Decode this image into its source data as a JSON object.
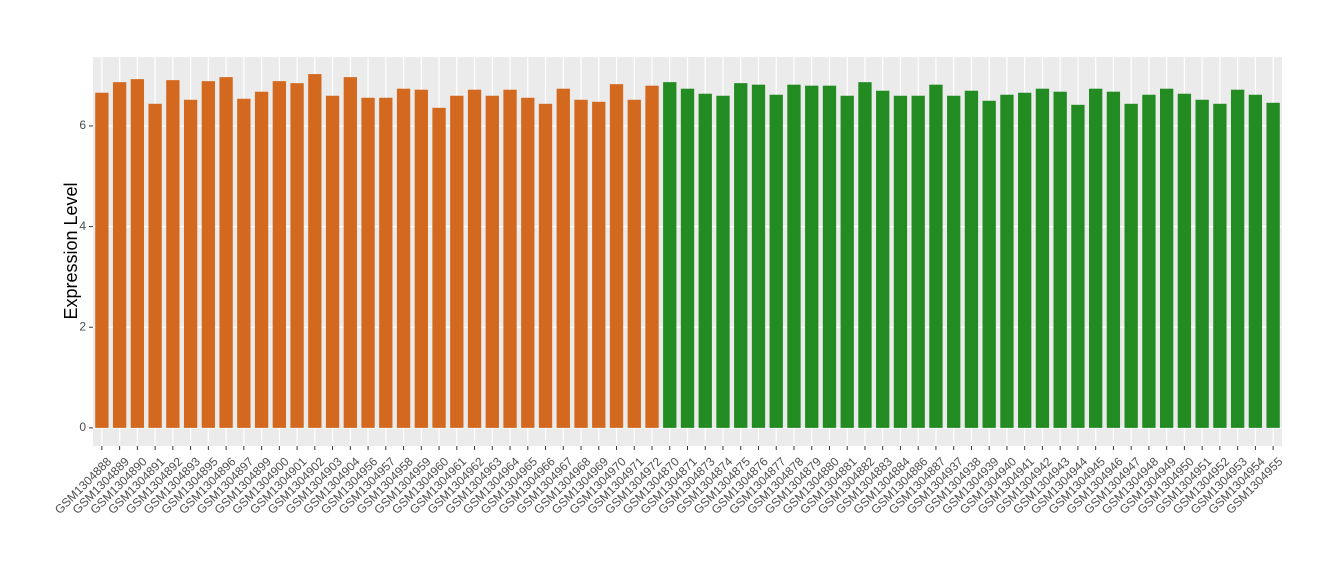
{
  "chart_data": {
    "type": "bar",
    "y_label": "Expression Level",
    "categories": [
      "GSM1304888",
      "GSM1304889",
      "GSM1304890",
      "GSM1304891",
      "GSM1304892",
      "GSM1304893",
      "GSM1304895",
      "GSM1304896",
      "GSM1304897",
      "GSM1304899",
      "GSM1304900",
      "GSM1304901",
      "GSM1304902",
      "GSM1304903",
      "GSM1304904",
      "GSM1304956",
      "GSM1304957",
      "GSM1304958",
      "GSM1304959",
      "GSM1304960",
      "GSM1304961",
      "GSM1304962",
      "GSM1304963",
      "GSM1304964",
      "GSM1304965",
      "GSM1304966",
      "GSM1304967",
      "GSM1304968",
      "GSM1304969",
      "GSM1304970",
      "GSM1304971",
      "GSM1304972",
      "GSM1304870",
      "GSM1304871",
      "GSM1304873",
      "GSM1304874",
      "GSM1304875",
      "GSM1304876",
      "GSM1304877",
      "GSM1304878",
      "GSM1304879",
      "GSM1304880",
      "GSM1304881",
      "GSM1304882",
      "GSM1304883",
      "GSM1304884",
      "GSM1304886",
      "GSM1304887",
      "GSM1304937",
      "GSM1304938",
      "GSM1304939",
      "GSM1304940",
      "GSM1304941",
      "GSM1304942",
      "GSM1304943",
      "GSM1304944",
      "GSM1304945",
      "GSM1304946",
      "GSM1304947",
      "GSM1304948",
      "GSM1304949",
      "GSM1304950",
      "GSM1304951",
      "GSM1304952",
      "GSM1304953",
      "GSM1304954",
      "GSM1304955"
    ],
    "series": [
      {
        "color": "#D2691E",
        "values": [
          6.66,
          6.87,
          6.93,
          6.44,
          6.91,
          6.52,
          6.89,
          6.97,
          6.54,
          6.68,
          6.89,
          6.85,
          7.03,
          6.6,
          6.97,
          6.56,
          6.56,
          6.74,
          6.72,
          6.36,
          6.6,
          6.72,
          6.6,
          6.72,
          6.56,
          6.44,
          6.74,
          6.52,
          6.48,
          6.83,
          6.52,
          6.8,
          null,
          null,
          null,
          null,
          null,
          null,
          null,
          null,
          null,
          null,
          null,
          null,
          null,
          null,
          null,
          null,
          null,
          null,
          null,
          null,
          null,
          null,
          null,
          null,
          null,
          null,
          null,
          null,
          null,
          null,
          null,
          null,
          null,
          null,
          null
        ]
      },
      {
        "color": "#228B22",
        "values": [
          null,
          null,
          null,
          null,
          null,
          null,
          null,
          null,
          null,
          null,
          null,
          null,
          null,
          null,
          null,
          null,
          null,
          null,
          null,
          null,
          null,
          null,
          null,
          null,
          null,
          null,
          null,
          null,
          null,
          null,
          null,
          null,
          6.87,
          6.74,
          6.64,
          6.6,
          6.85,
          6.82,
          6.62,
          6.82,
          6.8,
          6.8,
          6.6,
          6.87,
          6.7,
          6.6,
          6.6,
          6.82,
          6.6,
          6.7,
          6.5,
          6.62,
          6.66,
          6.74,
          6.68,
          6.42,
          6.74,
          6.68,
          6.44,
          6.62,
          6.74,
          6.64,
          6.52,
          6.44,
          6.72,
          6.62,
          6.46
        ]
      }
    ],
    "ylim": [
      -0.36,
      7.37
    ],
    "yticks": [
      0,
      2,
      4,
      6
    ],
    "grid": true
  }
}
